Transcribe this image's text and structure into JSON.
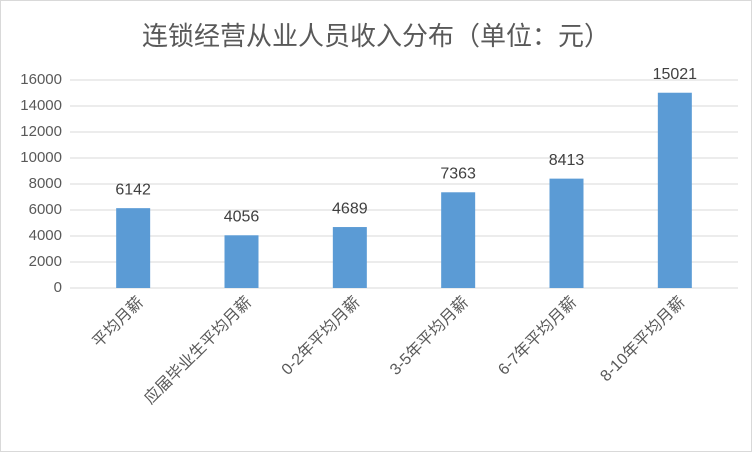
{
  "chart_data": {
    "type": "bar",
    "title": "连锁经营从业人员收入分布（单位：元）",
    "categories": [
      "平均月薪",
      "应届毕业生平均月薪",
      "0-2年平均月薪",
      "3-5年平均月薪",
      "6-7年平均月薪",
      "8-10年平均月薪"
    ],
    "values": [
      6142,
      4056,
      4689,
      7363,
      8413,
      15021
    ],
    "color": "#5b9bd5",
    "ylim": [
      0,
      16000
    ],
    "yticks": [
      0,
      2000,
      4000,
      6000,
      8000,
      10000,
      12000,
      14000,
      16000
    ],
    "grid": true,
    "data_labels": true
  }
}
